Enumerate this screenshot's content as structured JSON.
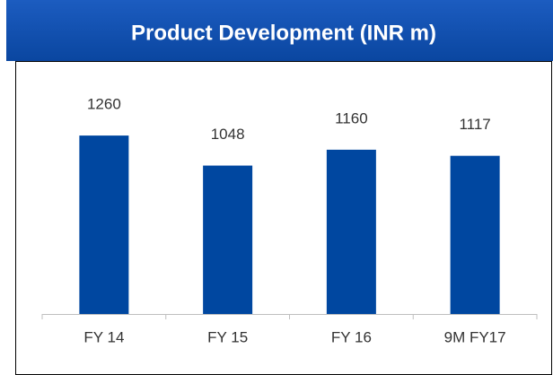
{
  "chart_data": {
    "type": "bar",
    "title": "Product Development (INR m)",
    "categories": [
      "FY 14",
      "FY 15",
      "FY 16",
      "9M FY17"
    ],
    "values": [
      1260,
      1048,
      1160,
      1117
    ],
    "color": "#0047a0",
    "ylim": [
      0,
      1400
    ]
  }
}
